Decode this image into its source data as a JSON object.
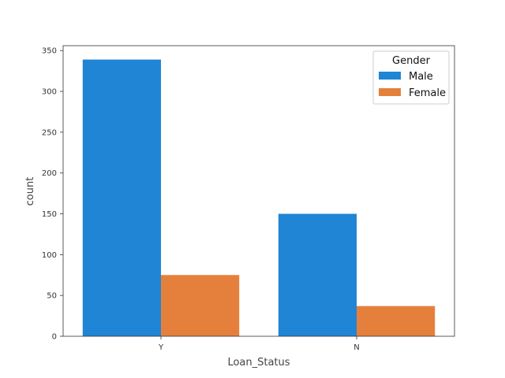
{
  "chart_data": {
    "type": "bar",
    "categories": [
      "Y",
      "N"
    ],
    "series": [
      {
        "name": "Male",
        "color": "#1f85d4",
        "values": [
          339,
          150
        ]
      },
      {
        "name": "Female",
        "color": "#e5803c",
        "values": [
          75,
          37
        ]
      }
    ],
    "xlabel": "Loan_Status",
    "ylabel": "count",
    "ylim": [
      0,
      356
    ],
    "yticks": [
      0,
      50,
      100,
      150,
      200,
      250,
      300,
      350
    ],
    "legend": {
      "title": "Gender",
      "placement": "top-right"
    },
    "grid": false
  }
}
